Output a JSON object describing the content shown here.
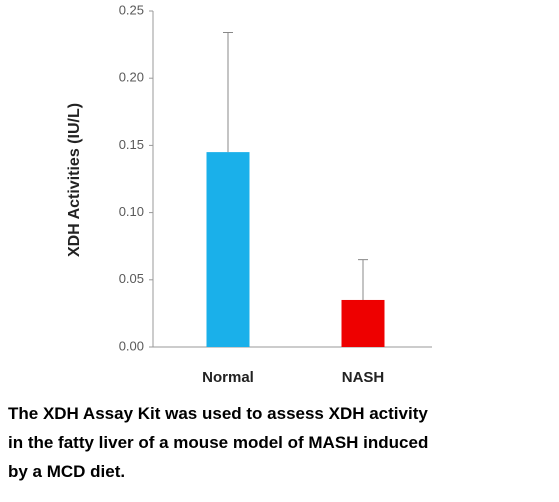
{
  "chart_data": {
    "type": "bar",
    "y_label": "XDH Activities (IU/L)",
    "categories": [
      "Normal",
      "NASH"
    ],
    "values": [
      0.145,
      0.035
    ],
    "errors": [
      0.089,
      0.03
    ],
    "colors": [
      "#1ab0ea",
      "#ee0000"
    ],
    "ylim": [
      0,
      0.25
    ],
    "yticks": [
      {
        "value": 0,
        "label": "0.00"
      },
      0.05,
      {
        "value": 0.1,
        "label": "0.10"
      },
      0.15,
      {
        "value": 0.2,
        "label": "0.20"
      },
      0.25
    ],
    "caption": [
      "The XDH Assay Kit was used to assess XDH activity",
      "in the fatty liver of a mouse model of MASH induced",
      "by a MCD diet."
    ]
  }
}
